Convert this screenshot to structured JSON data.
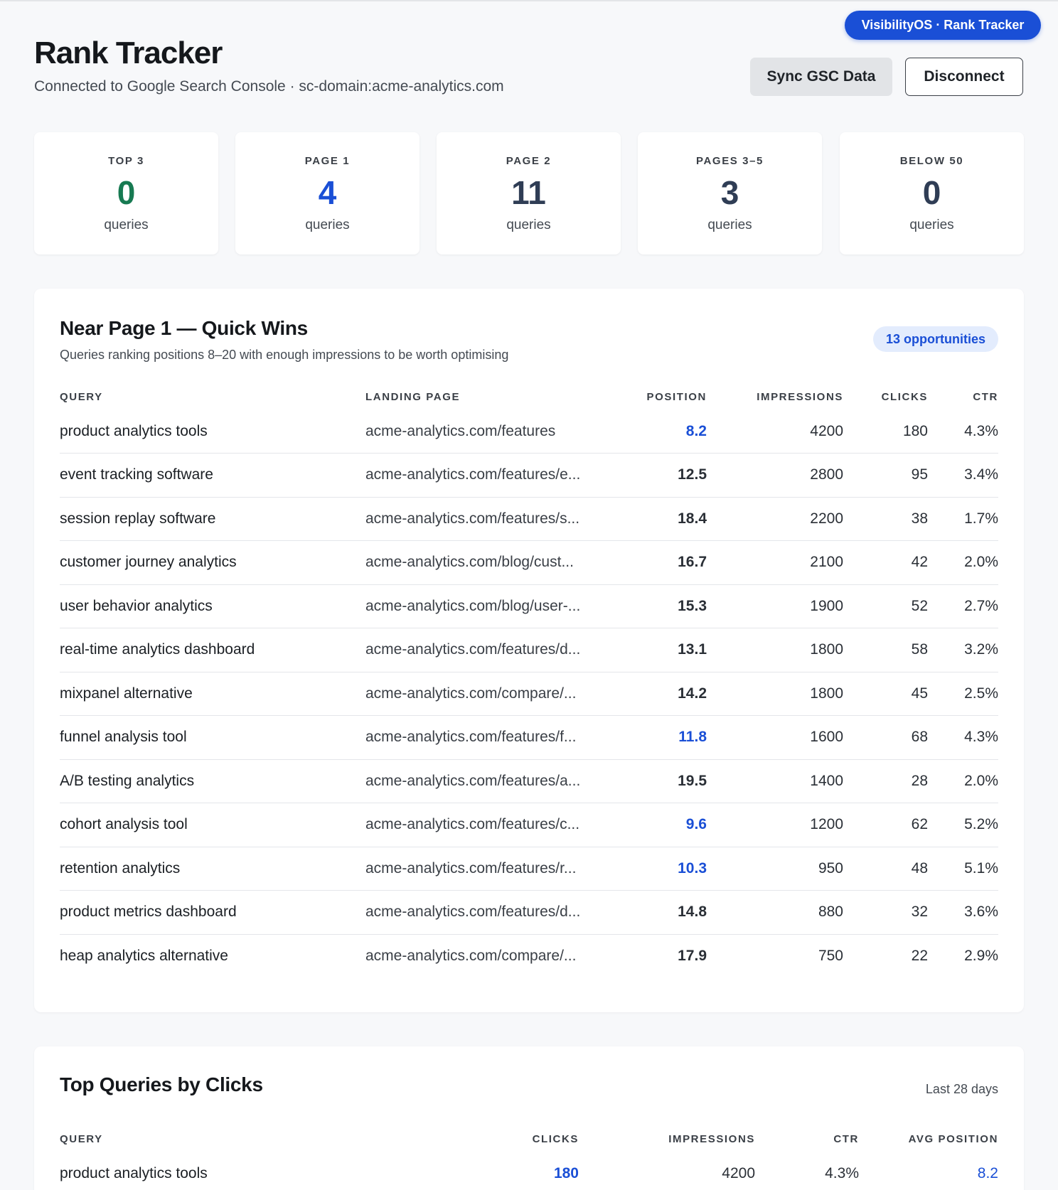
{
  "app_badge": "VisibilityOS · Rank Tracker",
  "header": {
    "title": "Rank Tracker",
    "subtitle": "Connected to Google Search Console · sc-domain:acme-analytics.com",
    "sync_label": "Sync GSC Data",
    "disconnect_label": "Disconnect"
  },
  "stats": [
    {
      "label": "TOP 3",
      "value": "0",
      "unit": "queries",
      "color": "#177a52"
    },
    {
      "label": "PAGE 1",
      "value": "4",
      "unit": "queries",
      "color": "#1a4fd6"
    },
    {
      "label": "PAGE 2",
      "value": "11",
      "unit": "queries",
      "color": "#2f3d55"
    },
    {
      "label": "PAGES 3–5",
      "value": "3",
      "unit": "queries",
      "color": "#2f3d55"
    },
    {
      "label": "BELOW 50",
      "value": "0",
      "unit": "queries",
      "color": "#2f3d55"
    }
  ],
  "quick_wins": {
    "title": "Near Page 1 — Quick Wins",
    "description": "Queries ranking positions 8–20 with enough impressions to be worth optimising",
    "badge": "13 opportunities",
    "columns": {
      "query": "QUERY",
      "landing": "LANDING PAGE",
      "position": "POSITION",
      "impressions": "IMPRESSIONS",
      "clicks": "CLICKS",
      "ctr": "CTR"
    },
    "rows": [
      {
        "query": "product analytics tools",
        "landing": "acme-analytics.com/features",
        "position": "8.2",
        "impressions": "4200",
        "clicks": "180",
        "ctr": "4.3%",
        "highlight": true
      },
      {
        "query": "event tracking software",
        "landing": "acme-analytics.com/features/e...",
        "position": "12.5",
        "impressions": "2800",
        "clicks": "95",
        "ctr": "3.4%",
        "highlight": false
      },
      {
        "query": "session replay software",
        "landing": "acme-analytics.com/features/s...",
        "position": "18.4",
        "impressions": "2200",
        "clicks": "38",
        "ctr": "1.7%",
        "highlight": false
      },
      {
        "query": "customer journey analytics",
        "landing": "acme-analytics.com/blog/cust...",
        "position": "16.7",
        "impressions": "2100",
        "clicks": "42",
        "ctr": "2.0%",
        "highlight": false
      },
      {
        "query": "user behavior analytics",
        "landing": "acme-analytics.com/blog/user-...",
        "position": "15.3",
        "impressions": "1900",
        "clicks": "52",
        "ctr": "2.7%",
        "highlight": false
      },
      {
        "query": "real-time analytics dashboard",
        "landing": "acme-analytics.com/features/d...",
        "position": "13.1",
        "impressions": "1800",
        "clicks": "58",
        "ctr": "3.2%",
        "highlight": false
      },
      {
        "query": "mixpanel alternative",
        "landing": "acme-analytics.com/compare/...",
        "position": "14.2",
        "impressions": "1800",
        "clicks": "45",
        "ctr": "2.5%",
        "highlight": false
      },
      {
        "query": "funnel analysis tool",
        "landing": "acme-analytics.com/features/f...",
        "position": "11.8",
        "impressions": "1600",
        "clicks": "68",
        "ctr": "4.3%",
        "highlight": true
      },
      {
        "query": "A/B testing analytics",
        "landing": "acme-analytics.com/features/a...",
        "position": "19.5",
        "impressions": "1400",
        "clicks": "28",
        "ctr": "2.0%",
        "highlight": false
      },
      {
        "query": "cohort analysis tool",
        "landing": "acme-analytics.com/features/c...",
        "position": "9.6",
        "impressions": "1200",
        "clicks": "62",
        "ctr": "5.2%",
        "highlight": true
      },
      {
        "query": "retention analytics",
        "landing": "acme-analytics.com/features/r...",
        "position": "10.3",
        "impressions": "950",
        "clicks": "48",
        "ctr": "5.1%",
        "highlight": true
      },
      {
        "query": "product metrics dashboard",
        "landing": "acme-analytics.com/features/d...",
        "position": "14.8",
        "impressions": "880",
        "clicks": "32",
        "ctr": "3.6%",
        "highlight": false
      },
      {
        "query": "heap analytics alternative",
        "landing": "acme-analytics.com/compare/...",
        "position": "17.9",
        "impressions": "750",
        "clicks": "22",
        "ctr": "2.9%",
        "highlight": false
      }
    ]
  },
  "top_queries": {
    "title": "Top Queries by Clicks",
    "period": "Last 28 days",
    "columns": {
      "query": "QUERY",
      "clicks": "CLICKS",
      "impressions": "IMPRESSIONS",
      "ctr": "CTR",
      "avg_position": "AVG POSITION"
    },
    "rows": [
      {
        "query": "product analytics tools",
        "clicks": "180",
        "impressions": "4200",
        "ctr": "4.3%",
        "avg_position": "8.2"
      }
    ]
  }
}
